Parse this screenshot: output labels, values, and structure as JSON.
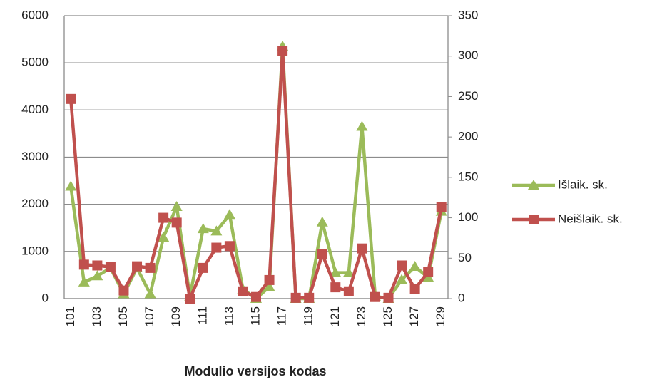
{
  "chart_data": {
    "type": "line",
    "x_label": "Modulio versijos kodas",
    "categories": [
      "101",
      null,
      "103",
      null,
      "105",
      null,
      "107",
      null,
      "109",
      null,
      "111",
      null,
      "113",
      null,
      "115",
      null,
      "117",
      null,
      "119",
      null,
      "121",
      null,
      "123",
      null,
      "125",
      null,
      "127",
      null,
      "129"
    ],
    "series": [
      {
        "name": "Išlaik. sk.",
        "color": "#9bbb59",
        "marker": "triangle",
        "axis": "y",
        "values": [
          2380,
          350,
          480,
          650,
          100,
          650,
          100,
          1300,
          1950,
          50,
          1480,
          1430,
          1780,
          200,
          0,
          250,
          5350,
          0,
          0,
          1620,
          550,
          550,
          3650,
          50,
          0,
          400,
          680,
          450,
          1850
        ]
      },
      {
        "name": "Neišlaik. sk.",
        "color": "#c0504d",
        "marker": "square",
        "axis": "y2",
        "values": [
          247,
          42,
          41,
          39,
          10,
          40,
          38,
          100,
          94,
          0,
          38,
          63,
          65,
          9,
          2,
          23,
          306,
          1,
          1,
          55,
          14,
          9,
          62,
          2,
          1,
          41,
          12,
          33,
          113
        ]
      }
    ],
    "ylim": [
      0,
      6000
    ],
    "yticks": [
      0,
      1000,
      2000,
      3000,
      4000,
      5000,
      6000
    ],
    "y2lim": [
      0,
      350
    ],
    "y2ticks": [
      0,
      50,
      100,
      150,
      200,
      250,
      300,
      350
    ],
    "grid": true,
    "legend": "right"
  }
}
